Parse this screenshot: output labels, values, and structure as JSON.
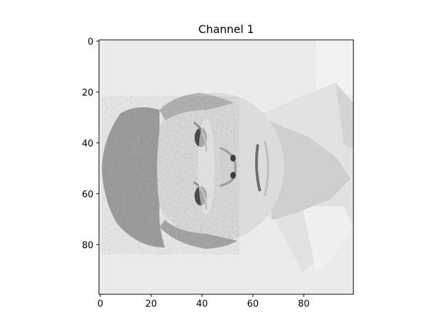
{
  "figure": {
    "title": "Channel 1",
    "image_description": "Grayscale photo of a smiling person with short light hair, rotated 90 degrees (face turned sideways), wearing a light collared shirt against a pale background"
  },
  "axes": {
    "x_ticks": [
      {
        "value": 0,
        "label": "0"
      },
      {
        "value": 20,
        "label": "20"
      },
      {
        "value": 40,
        "label": "40"
      },
      {
        "value": 60,
        "label": "60"
      },
      {
        "value": 80,
        "label": "80"
      }
    ],
    "y_ticks": [
      {
        "value": 0,
        "label": "0"
      },
      {
        "value": 20,
        "label": "20"
      },
      {
        "value": 40,
        "label": "40"
      },
      {
        "value": 60,
        "label": "60"
      },
      {
        "value": 80,
        "label": "80"
      }
    ],
    "xlim": [
      -0.5,
      99.5
    ],
    "ylim": [
      99.5,
      -0.5
    ],
    "y_inverted": true
  },
  "colors": {
    "background": "#ffffff",
    "image_bg": "#ececec",
    "axis": "#000000"
  }
}
